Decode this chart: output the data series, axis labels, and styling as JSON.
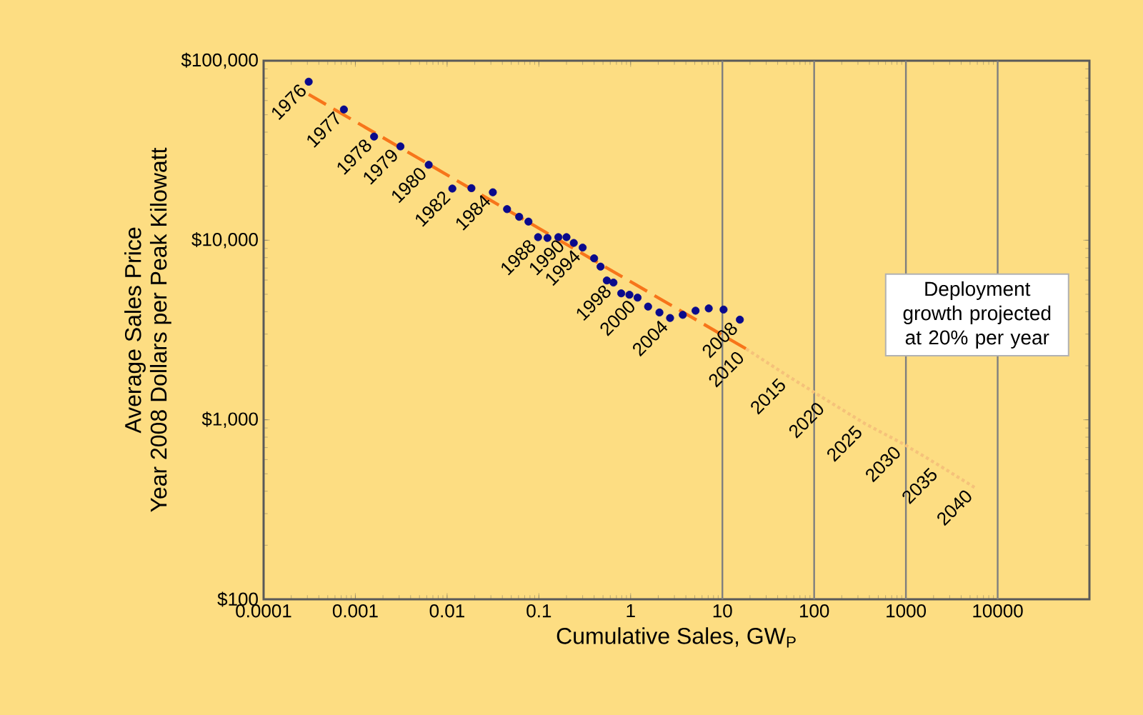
{
  "chart_data": {
    "type": "scatter",
    "xlabel": "Cumulative Sales, GW$_{P}$",
    "ylabel": "Average Sales Price",
    "log": "xy",
    "xlim": [
      0.0001,
      100000
    ],
    "ylim": [
      100,
      100000
    ],
    "xticks": [
      0.0001,
      0.001,
      0.01,
      0.1,
      1,
      10,
      100,
      1000,
      10000
    ],
    "yticks": [
      {
        "value": 100,
        "label": "$100"
      },
      {
        "value": 1000,
        "label": "$1,000"
      },
      {
        "value": 10000,
        "label": "$10,000"
      },
      {
        "value": 100000,
        "label": "$100,000"
      }
    ],
    "series": [
      {
        "marker": "circle",
        "color": "#0a0a8c",
        "x": [
          0.00031,
          0.00075,
          0.0016,
          0.0031,
          0.0063,
          0.0114,
          0.0184,
          0.0315,
          0.045,
          0.061,
          0.077,
          0.098,
          0.124,
          0.163,
          0.2,
          0.24,
          0.3,
          0.4,
          0.47,
          0.55,
          0.65,
          0.79,
          0.97,
          1.19,
          1.55,
          2.06,
          2.69,
          3.7,
          5.1,
          7.1,
          10.3,
          15.5
        ],
        "values": [
          76400,
          53500,
          37800,
          33300,
          26300,
          19400,
          19500,
          18500,
          14900,
          13500,
          12700,
          10400,
          10300,
          10400,
          10400,
          9660,
          9100,
          7930,
          7130,
          5970,
          5810,
          5060,
          4970,
          4790,
          4270,
          3960,
          3690,
          3840,
          4050,
          4170,
          4110,
          3610
        ]
      },
      {
        "type": "line",
        "marker": "none",
        "line_style": "dashed",
        "color": "#f7751a",
        "x": [
          0.00031,
          18.2
        ],
        "values": [
          64900,
          2480
        ]
      },
      {
        "type": "line",
        "marker": "none",
        "line_style": "dotted",
        "color": "#f5c27a",
        "x": [
          18.2,
          52,
          136,
          353,
          930,
          2330,
          5590
        ],
        "values": [
          2480,
          1750,
          1290,
          955,
          735,
          555,
          420
        ]
      }
    ],
    "ref_lines": [
      {
        "axis": "x",
        "value": 10,
        "color": "#7f7f7f"
      },
      {
        "axis": "x",
        "value": 100,
        "color": "#7f7f7f"
      },
      {
        "axis": "x",
        "value": 1000,
        "color": "#7f7f7f"
      },
      {
        "axis": "x",
        "value": 10000,
        "color": "#7f7f7f"
      }
    ],
    "annotations": [
      "Deployment growth projected at 20% per year",
      "Year 2008 Dollars per Peak Kilowatt",
      {
        "text": "1976",
        "x": 0.00031,
        "y": 76400
      },
      {
        "text": "1977",
        "x": 0.00075,
        "y": 53500
      },
      {
        "text": "1978",
        "x": 0.0016,
        "y": 37800
      },
      {
        "text": "1979",
        "x": 0.0031,
        "y": 33300
      },
      {
        "text": "1980",
        "x": 0.0063,
        "y": 26300
      },
      {
        "text": "1982",
        "x": 0.0114,
        "y": 19400
      },
      {
        "text": "1984",
        "x": 0.0315,
        "y": 18500
      },
      {
        "text": "1988",
        "x": 0.098,
        "y": 10400
      },
      {
        "text": "1990",
        "x": 0.2,
        "y": 10400
      },
      {
        "text": "1994",
        "x": 0.3,
        "y": 9100
      },
      {
        "text": "1998",
        "x": 0.65,
        "y": 5810
      },
      {
        "text": "2000",
        "x": 1.19,
        "y": 4790
      },
      {
        "text": "2004",
        "x": 2.69,
        "y": 3690
      },
      {
        "text": "2008",
        "x": 15.5,
        "y": 3610
      },
      {
        "text": "2010",
        "x": 18.2,
        "y": 2480
      },
      {
        "text": "2015",
        "x": 52,
        "y": 1750
      },
      {
        "text": "2020",
        "x": 136,
        "y": 1290
      },
      {
        "text": "2025",
        "x": 353,
        "y": 955
      },
      {
        "text": "2030",
        "x": 930,
        "y": 735
      },
      {
        "text": "2035",
        "x": 2330,
        "y": 555
      },
      {
        "text": "2040",
        "x": 5590,
        "y": 420
      }
    ]
  }
}
